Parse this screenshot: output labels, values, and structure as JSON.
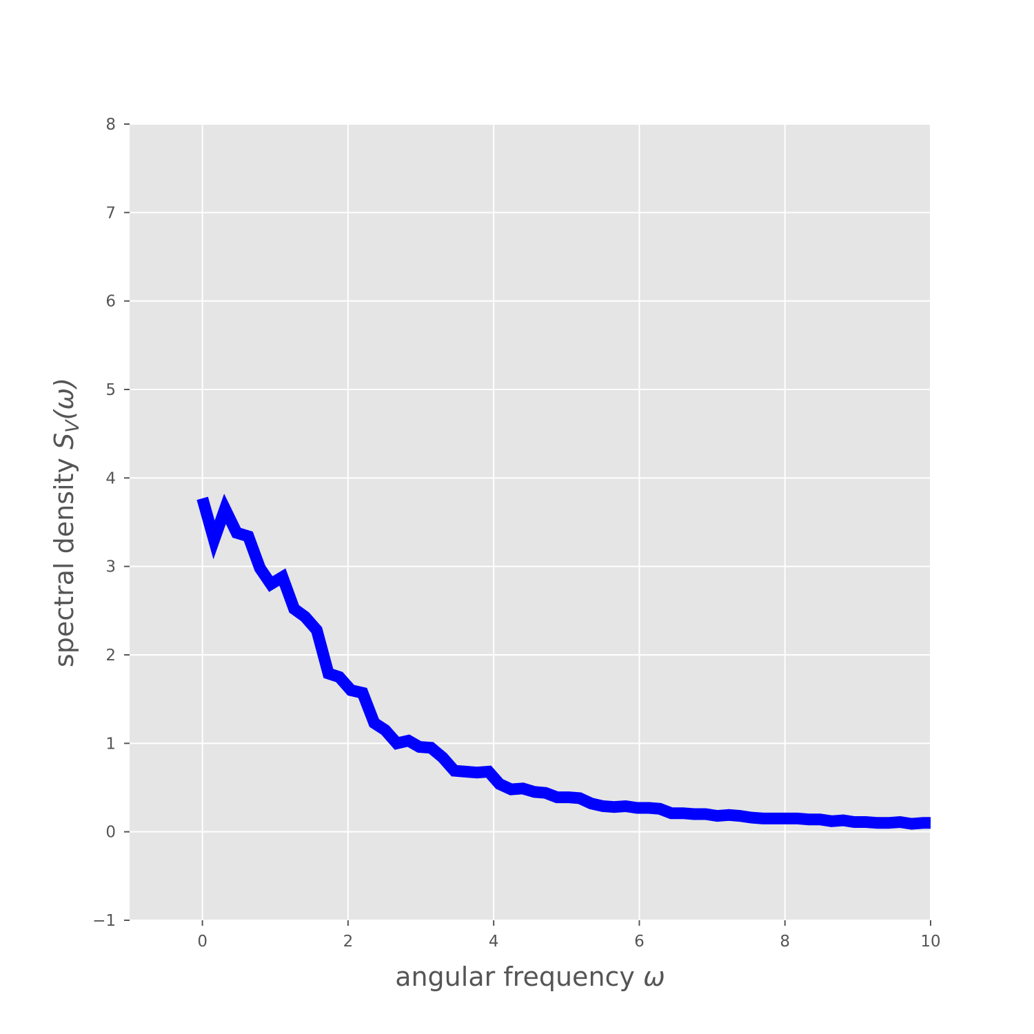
{
  "chart_data": {
    "type": "line",
    "title": "",
    "xlabel": "angular frequency ω",
    "ylabel": "spectral density S_V(ω)",
    "xlabel_parts": {
      "text": "angular frequency ",
      "symbol": "ω"
    },
    "ylabel_parts": {
      "text": "spectral density ",
      "S": "S",
      "sub": "V",
      "arg": "(ω)"
    },
    "xlim": [
      -1,
      10
    ],
    "ylim": [
      -1,
      8
    ],
    "xticks": [
      0,
      2,
      4,
      6,
      8,
      10
    ],
    "yticks": [
      -1,
      0,
      1,
      2,
      3,
      4,
      5,
      6,
      7,
      8
    ],
    "xtick_labels": [
      "0",
      "2",
      "4",
      "6",
      "8",
      "10"
    ],
    "ytick_labels": [
      "−1",
      "0",
      "1",
      "2",
      "3",
      "4",
      "5",
      "6",
      "7",
      "8"
    ],
    "grid": true,
    "background": "#e5e5e5",
    "series": [
      {
        "color": "#0000ff",
        "x": [
          0,
          0.16,
          0.31,
          0.47,
          0.63,
          0.79,
          0.94,
          1.1,
          1.26,
          1.41,
          1.57,
          1.73,
          1.88,
          2.04,
          2.2,
          2.36,
          2.51,
          2.67,
          2.83,
          2.98,
          3.14,
          3.3,
          3.46,
          3.61,
          3.77,
          3.93,
          4.08,
          4.24,
          4.4,
          4.56,
          4.71,
          4.87,
          5.03,
          5.18,
          5.34,
          5.5,
          5.65,
          5.81,
          5.97,
          6.13,
          6.28,
          6.44,
          6.6,
          6.75,
          6.91,
          7.07,
          7.23,
          7.38,
          7.54,
          7.7,
          7.85,
          8.01,
          8.17,
          8.33,
          8.48,
          8.64,
          8.8,
          8.95,
          9.11,
          9.27,
          9.42,
          9.58,
          9.74,
          9.9,
          10.0
        ],
        "y": [
          3.77,
          3.3,
          3.65,
          3.38,
          3.34,
          2.98,
          2.8,
          2.88,
          2.52,
          2.43,
          2.28,
          1.79,
          1.75,
          1.6,
          1.57,
          1.23,
          1.15,
          1.0,
          1.03,
          0.96,
          0.95,
          0.84,
          0.69,
          0.68,
          0.67,
          0.68,
          0.54,
          0.48,
          0.49,
          0.45,
          0.44,
          0.39,
          0.39,
          0.38,
          0.32,
          0.29,
          0.28,
          0.29,
          0.27,
          0.27,
          0.26,
          0.21,
          0.21,
          0.2,
          0.2,
          0.18,
          0.19,
          0.18,
          0.16,
          0.15,
          0.15,
          0.15,
          0.15,
          0.14,
          0.14,
          0.12,
          0.13,
          0.11,
          0.11,
          0.1,
          0.1,
          0.11,
          0.09,
          0.1,
          0.1
        ]
      }
    ]
  }
}
